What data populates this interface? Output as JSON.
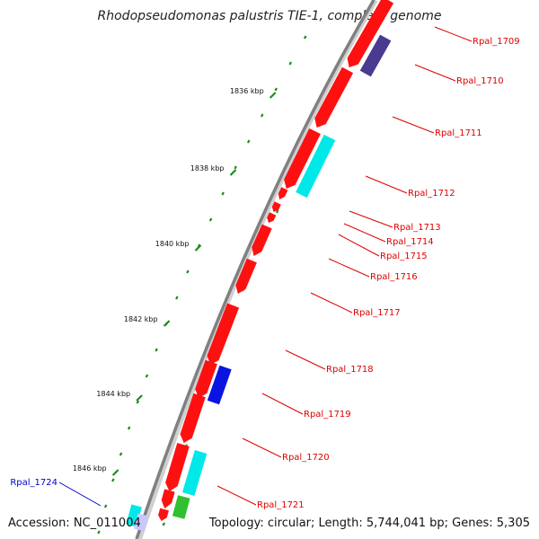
{
  "title": "Rhodopseudomonas palustris TIE-1, complete genome",
  "footer": {
    "accession": "Accession: NC_011004",
    "topology": "Topology: circular; Length: 5,744,041 bp; Genes: 5,305"
  },
  "colors": {
    "backbone": "#808080",
    "tick": "#1e8c1e",
    "label_red": "#dd0000",
    "label_blue": "#0000cc"
  },
  "ticks": [
    {
      "label": "1836 kbp"
    },
    {
      "label": "1838 kbp"
    },
    {
      "label": "1840 kbp"
    },
    {
      "label": "1842 kbp"
    },
    {
      "label": "1844 kbp"
    },
    {
      "label": "1846 kbp"
    }
  ],
  "genes": [
    {
      "name": "Rpal_1709",
      "color": "red"
    },
    {
      "name": "Rpal_1710",
      "color": "red"
    },
    {
      "name": "Rpal_1711",
      "color": "red"
    },
    {
      "name": "Rpal_1712",
      "color": "red"
    },
    {
      "name": "Rpal_1713",
      "color": "red"
    },
    {
      "name": "Rpal_1714",
      "color": "red"
    },
    {
      "name": "Rpal_1715",
      "color": "red"
    },
    {
      "name": "Rpal_1716",
      "color": "red"
    },
    {
      "name": "Rpal_1717",
      "color": "red"
    },
    {
      "name": "Rpal_1718",
      "color": "red"
    },
    {
      "name": "Rpal_1719",
      "color": "red"
    },
    {
      "name": "Rpal_1720",
      "color": "red"
    },
    {
      "name": "Rpal_1721",
      "color": "red"
    },
    {
      "name": "Rpal_1724",
      "color": "blue"
    }
  ]
}
